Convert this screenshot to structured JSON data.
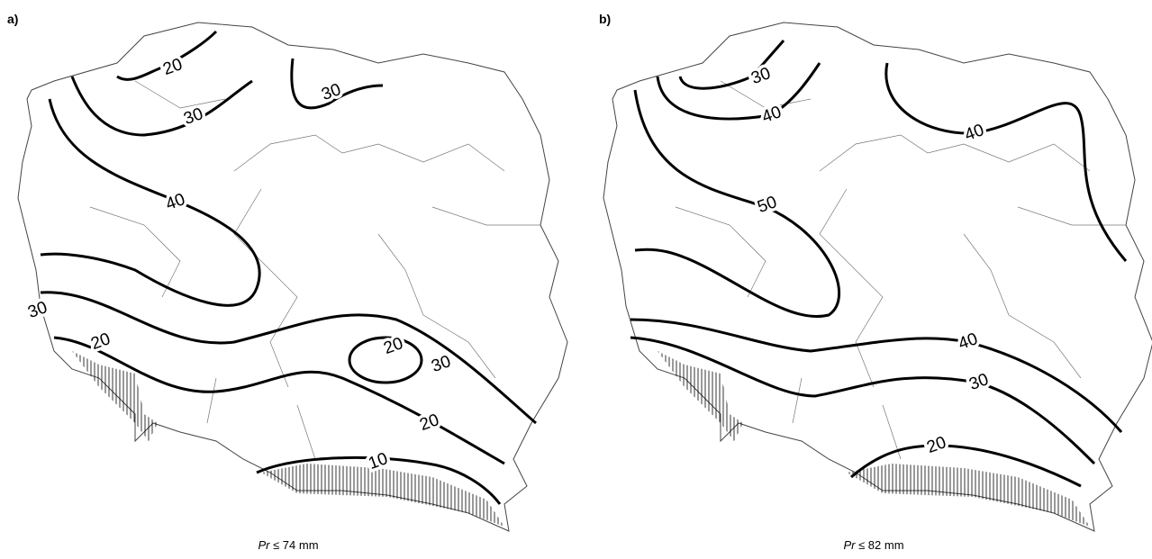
{
  "panels": [
    {
      "label": "a)",
      "caption": {
        "symbol": "Pr",
        "condition": "≤ 74 mm"
      },
      "isolines": [
        20,
        30,
        30,
        40,
        30,
        20,
        20,
        30,
        20,
        10
      ]
    },
    {
      "label": "b)",
      "caption": {
        "symbol": "Pr",
        "condition": "≤ 82 mm"
      },
      "isolines": [
        30,
        40,
        40,
        50,
        40,
        30,
        20
      ]
    }
  ]
}
